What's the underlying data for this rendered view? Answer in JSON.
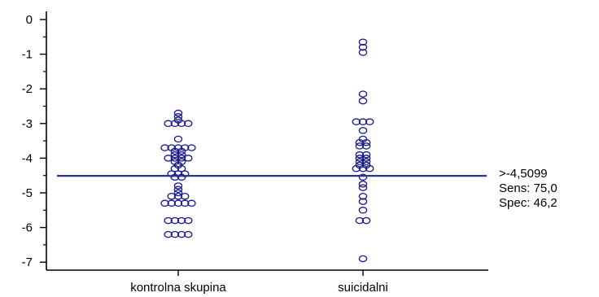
{
  "chart_data": {
    "type": "scatter",
    "title": "",
    "xlabel": "",
    "ylabel": "",
    "categories": [
      "kontrolna skupina",
      "suicidalni"
    ],
    "ylim": [
      -7.2,
      0.2
    ],
    "yticks": [
      "0",
      "-1",
      "-2",
      "-3",
      "-4",
      "-5",
      "-6",
      "-7"
    ],
    "grid": false,
    "cutoff": {
      "value": -4.5099,
      "labels": [
        ">-4,5099",
        "Sens: 75,0",
        "Spec: 46,2"
      ]
    },
    "series": [
      {
        "category": "kontrolna skupina",
        "values": [
          -2.7,
          -2.8,
          -2.9,
          -3.0,
          -3.0,
          -3.0,
          -3.0,
          -3.45,
          -3.7,
          -3.7,
          -3.75,
          -3.75,
          -3.75,
          -3.8,
          -3.85,
          -3.9,
          -3.95,
          -4.0,
          -4.0,
          -4.05,
          -4.05,
          -4.1,
          -4.15,
          -4.2,
          -4.3,
          -4.35,
          -4.45,
          -4.5,
          -4.5,
          -4.55,
          -4.6,
          -4.8,
          -4.9,
          -5.0,
          -5.1,
          -5.15,
          -5.15,
          -5.3,
          -5.3,
          -5.3,
          -5.3,
          -5.3,
          -5.8,
          -5.8,
          -5.8,
          -5.8,
          -6.2,
          -6.2,
          -6.2,
          -6.2
        ]
      },
      {
        "category": "suicidalni",
        "values": [
          -0.65,
          -0.8,
          -0.95,
          -2.15,
          -2.35,
          -2.95,
          -2.95,
          -2.95,
          -3.2,
          -3.45,
          -3.55,
          -3.6,
          -3.65,
          -3.7,
          -3.9,
          -3.95,
          -4.0,
          -4.05,
          -4.1,
          -4.15,
          -4.2,
          -4.25,
          -4.3,
          -4.35,
          -4.35,
          -4.55,
          -4.75,
          -4.85,
          -5.1,
          -5.25,
          -5.5,
          -5.8,
          -5.8,
          -6.9
        ]
      }
    ]
  }
}
